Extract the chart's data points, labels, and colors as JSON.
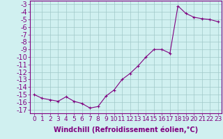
{
  "x": [
    0,
    1,
    2,
    3,
    4,
    5,
    6,
    7,
    8,
    9,
    10,
    11,
    12,
    13,
    14,
    15,
    16,
    17,
    18,
    19,
    20,
    21,
    22,
    23
  ],
  "y": [
    -15.0,
    -15.5,
    -15.7,
    -15.9,
    -15.3,
    -15.9,
    -16.2,
    -16.8,
    -16.6,
    -15.2,
    -14.4,
    -13.0,
    -12.2,
    -11.2,
    -10.0,
    -9.0,
    -9.0,
    -9.5,
    -3.2,
    -4.2,
    -4.7,
    -4.9,
    -5.0,
    -5.3
  ],
  "line_color": "#800080",
  "marker": "+",
  "bg_color": "#d0f0f0",
  "grid_color": "#a0c8c8",
  "xlabel": "Windchill (Refroidissement éolien,°C)",
  "xlim": [
    -0.5,
    23.5
  ],
  "ylim": [
    -17.5,
    -2.5
  ],
  "xtick_labels": [
    "0",
    "1",
    "2",
    "3",
    "4",
    "5",
    "6",
    "7",
    "8",
    "9",
    "10",
    "11",
    "12",
    "13",
    "14",
    "15",
    "16",
    "17",
    "18",
    "19",
    "20",
    "21",
    "22",
    "23"
  ],
  "ytick_values": [
    -17,
    -16,
    -15,
    -14,
    -13,
    -12,
    -11,
    -10,
    -9,
    -8,
    -7,
    -6,
    -5,
    -4,
    -3
  ],
  "axis_color": "#800080",
  "tick_color": "#800080",
  "label_color": "#800080",
  "font_size_xlabel": 7,
  "font_size_ytick": 7,
  "font_size_xtick": 6.5,
  "linewidth": 0.8,
  "markersize": 3,
  "markeredgewidth": 0.8
}
